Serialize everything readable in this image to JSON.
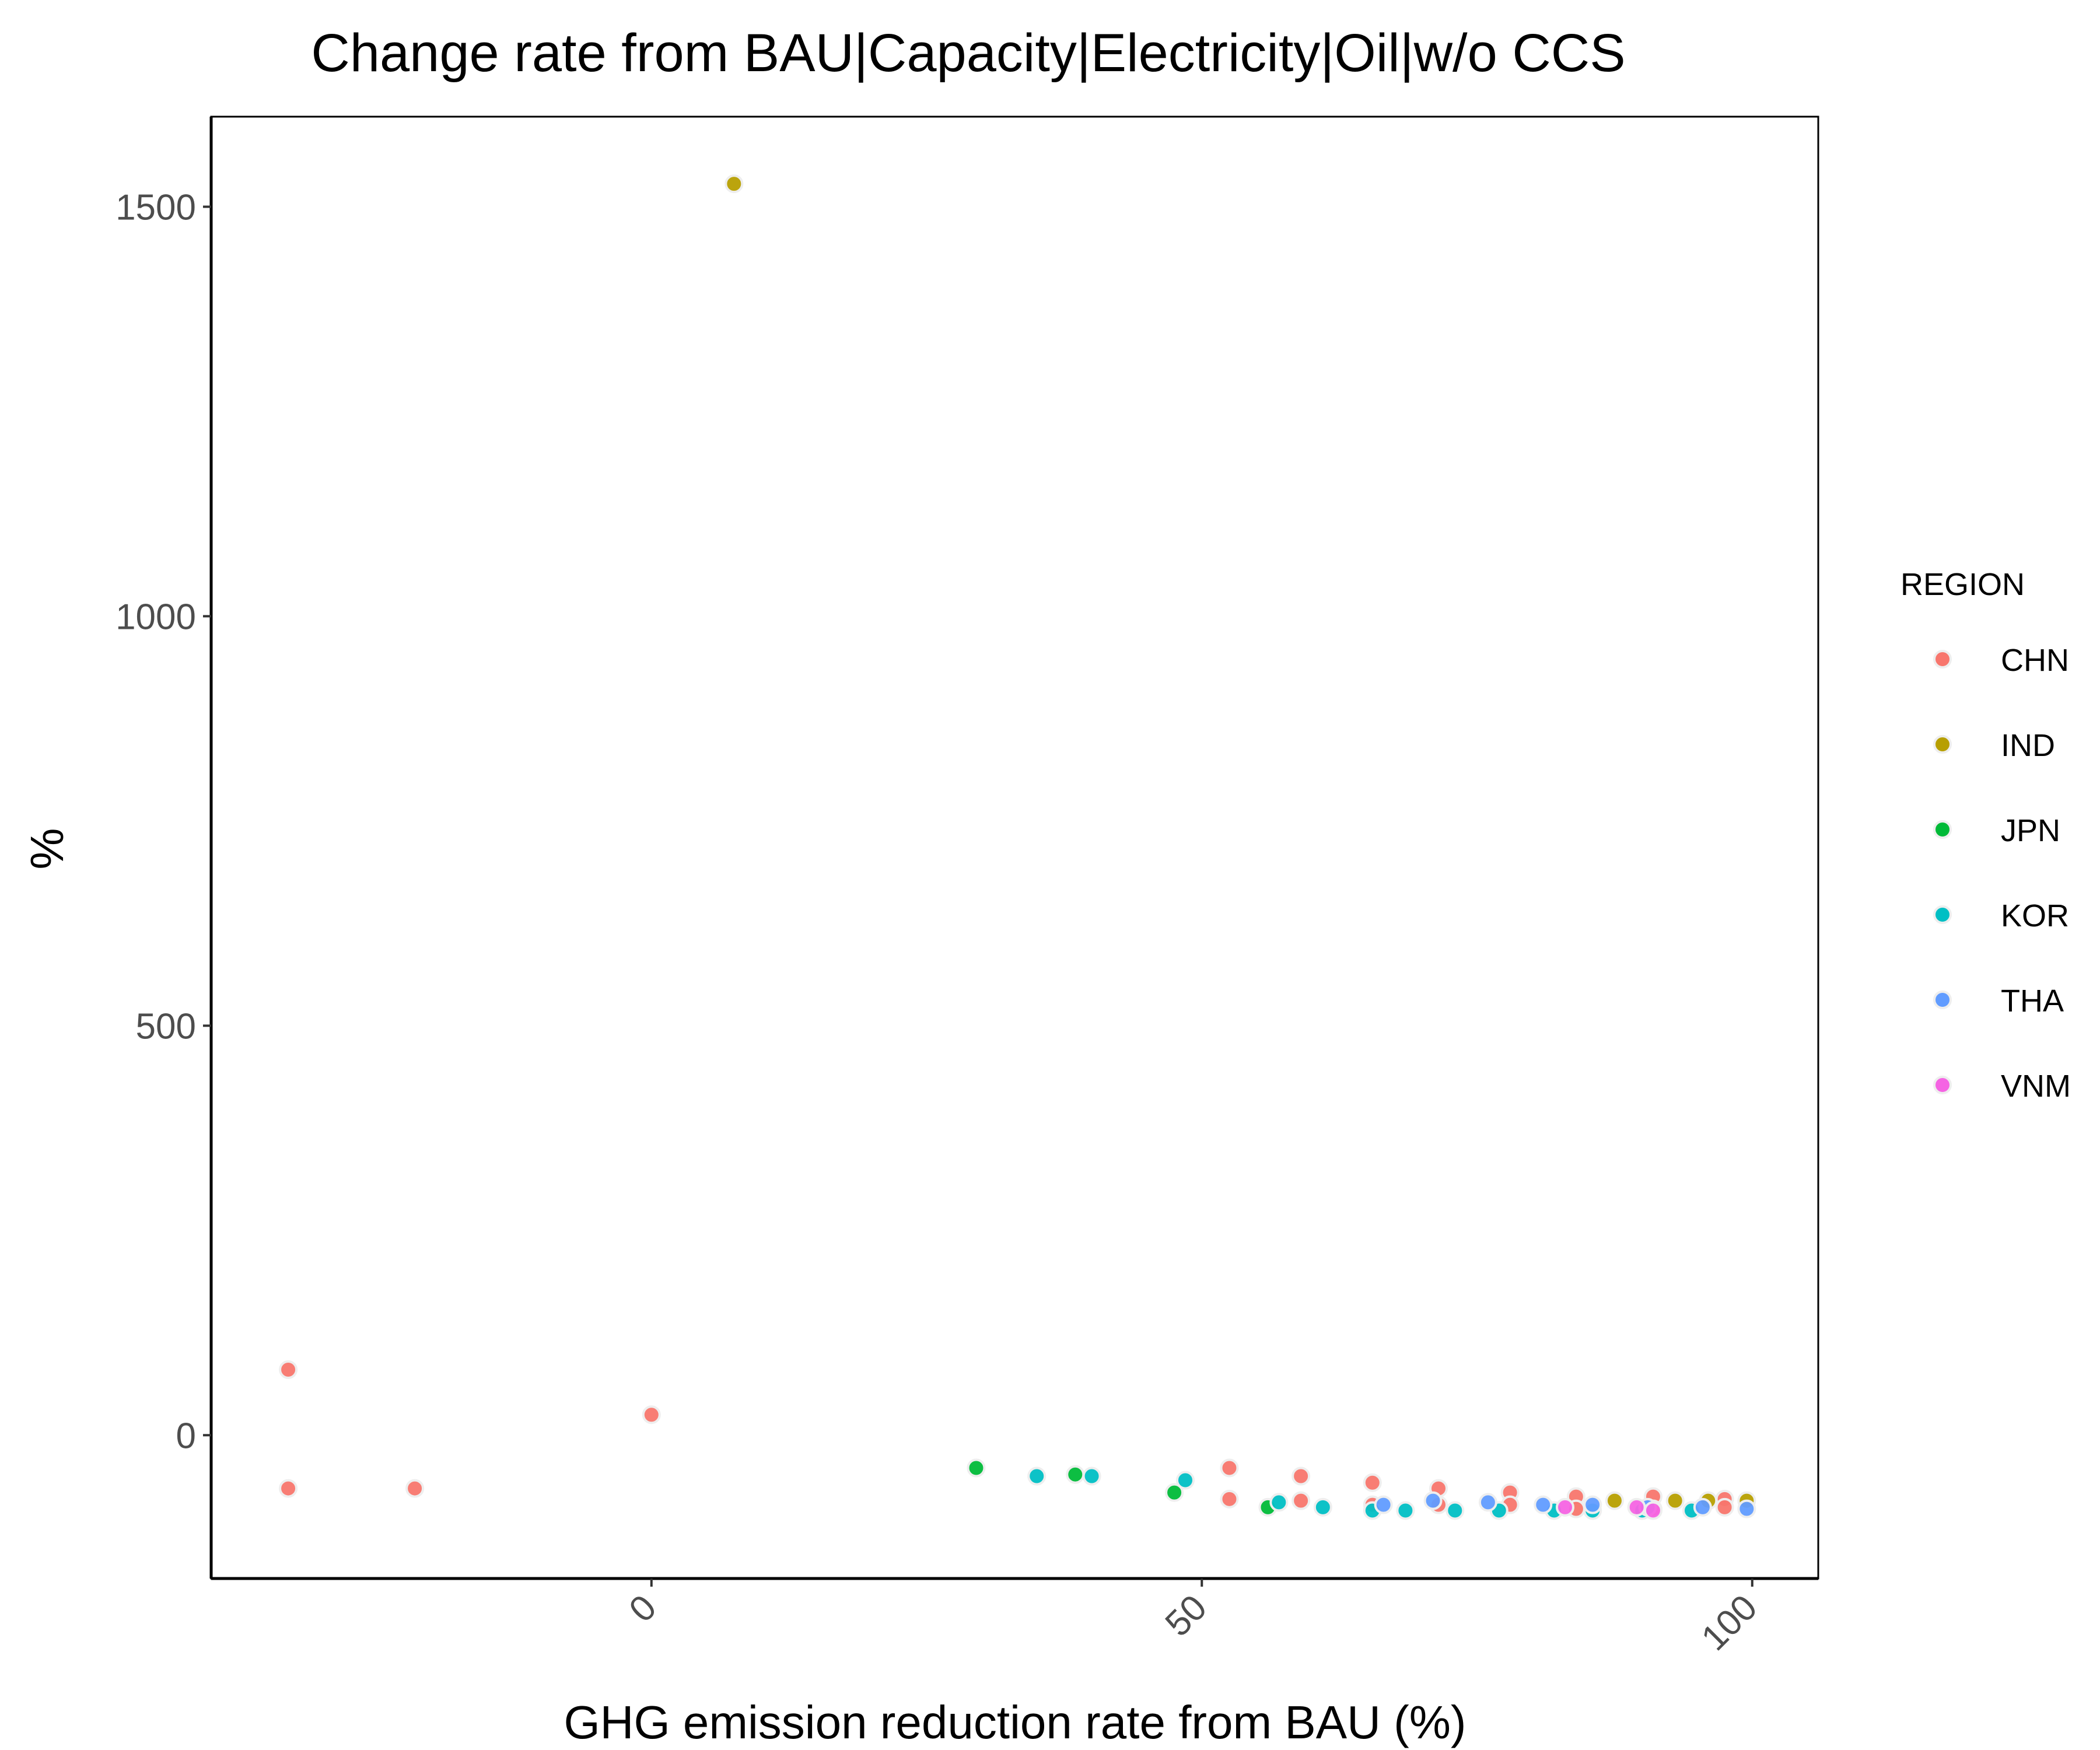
{
  "chart_data": {
    "type": "scatter",
    "title": "Change rate from BAU|Capacity|Electricity|Oil|w/o CCS",
    "xlabel": "GHG emission reduction rate from BAU (%)",
    "ylabel": "%",
    "xlim": [
      -40,
      106
    ],
    "ylim": [
      -175,
      1610
    ],
    "x_ticks": [
      0,
      50,
      100
    ],
    "y_ticks": [
      0,
      500,
      1000,
      1500
    ],
    "x_tick_labels": [
      "0",
      "50",
      "100"
    ],
    "y_tick_labels": [
      "0",
      "500",
      "1000",
      "1500"
    ],
    "legend": {
      "title": "REGION",
      "position": "right"
    },
    "series": [
      {
        "name": "CHN",
        "color": "#F8766D",
        "points": [
          [
            -33,
            80
          ],
          [
            -33,
            -65
          ],
          [
            -21.5,
            -65
          ],
          [
            0,
            25
          ],
          [
            52.5,
            -40
          ],
          [
            52.5,
            -78
          ],
          [
            59,
            -50
          ],
          [
            59,
            -80
          ],
          [
            65.5,
            -58
          ],
          [
            65.5,
            -85
          ],
          [
            71.5,
            -65
          ],
          [
            71.5,
            -85
          ],
          [
            78,
            -70
          ],
          [
            78,
            -85
          ],
          [
            84,
            -75
          ],
          [
            84,
            -90
          ],
          [
            91,
            -75
          ],
          [
            91,
            -90
          ],
          [
            97.5,
            -78
          ],
          [
            97.5,
            -88
          ]
        ]
      },
      {
        "name": "IND",
        "color": "#B79F00",
        "points": [
          [
            7.5,
            1528
          ],
          [
            87.5,
            -80
          ],
          [
            93,
            -80
          ],
          [
            96,
            -80
          ],
          [
            99.5,
            -80
          ]
        ]
      },
      {
        "name": "JPN",
        "color": "#00BA38",
        "points": [
          [
            29.5,
            -40
          ],
          [
            38.5,
            -48
          ],
          [
            47.5,
            -70
          ],
          [
            56,
            -88
          ]
        ]
      },
      {
        "name": "KOR",
        "color": "#00BFC4",
        "points": [
          [
            35,
            -50
          ],
          [
            40,
            -50
          ],
          [
            48.5,
            -55
          ],
          [
            57,
            -82
          ],
          [
            61,
            -88
          ],
          [
            65.5,
            -92
          ],
          [
            68.5,
            -92
          ],
          [
            73,
            -92
          ],
          [
            77,
            -92
          ],
          [
            82,
            -92
          ],
          [
            85.5,
            -92
          ],
          [
            90,
            -92
          ],
          [
            94.5,
            -92
          ]
        ]
      },
      {
        "name": "THA",
        "color": "#619CFF",
        "points": [
          [
            66.5,
            -85
          ],
          [
            71,
            -80
          ],
          [
            76,
            -82
          ],
          [
            81,
            -85
          ],
          [
            85.5,
            -85
          ],
          [
            90.5,
            -88
          ],
          [
            95.5,
            -88
          ],
          [
            99.5,
            -90
          ]
        ]
      },
      {
        "name": "VNM",
        "color": "#F564E3",
        "points": [
          [
            83,
            -88
          ],
          [
            89.5,
            -88
          ],
          [
            91,
            -92
          ]
        ]
      }
    ]
  }
}
